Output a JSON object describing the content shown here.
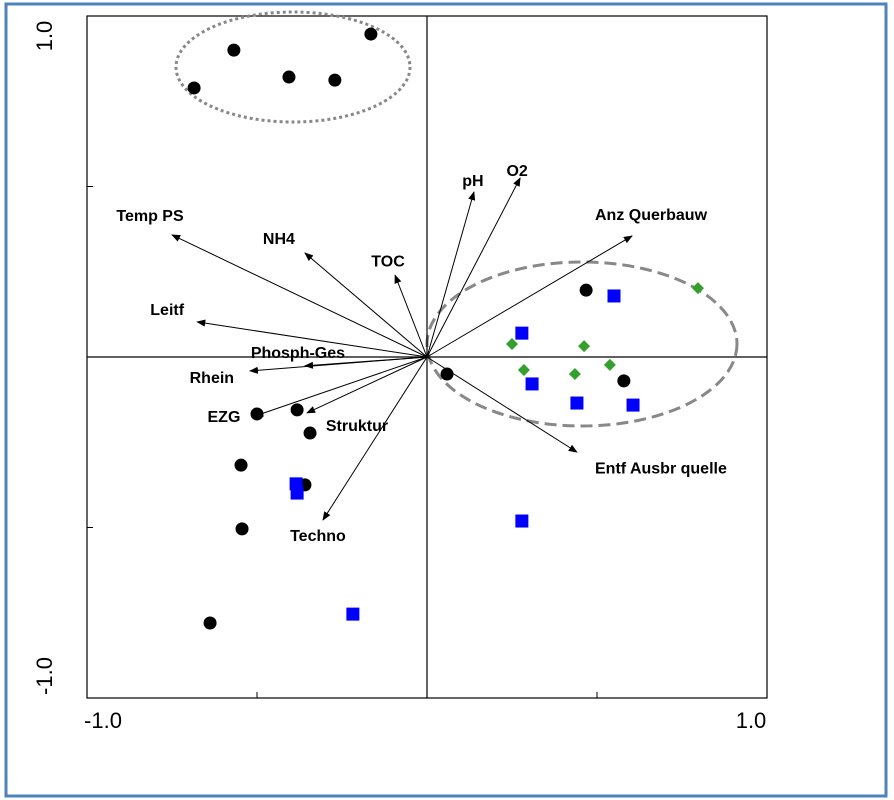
{
  "chart_data": {
    "type": "biplot",
    "xlim": [
      -1,
      1
    ],
    "ylim": [
      -1,
      1
    ],
    "xticks": [
      {
        "value": -1,
        "label": "-1.0"
      },
      {
        "value": 1,
        "label": "1.0"
      }
    ],
    "yticks": [
      {
        "value": -1,
        "label": "-1.0"
      },
      {
        "value": 1,
        "label": "1.0"
      }
    ],
    "xminor_ticks": [
      -0.5,
      0,
      0.5
    ],
    "yminor_ticks": [
      -0.5,
      0,
      0.5
    ],
    "series": [
      {
        "marker": "circle",
        "color": "#000000",
        "x": [
          -0.568,
          -0.685,
          -0.406,
          -0.271,
          -0.165,
          0.468,
          0.579,
          0.059,
          -0.5,
          -0.382,
          -0.344,
          -0.547,
          -0.359,
          -0.544,
          -0.638
        ],
        "y": [
          0.9,
          0.789,
          0.821,
          0.812,
          0.947,
          0.196,
          -0.07,
          -0.05,
          -0.167,
          -0.155,
          -0.223,
          -0.317,
          -0.375,
          -0.504,
          -0.78
        ]
      },
      {
        "marker": "square",
        "color": "#0000ff",
        "x": [
          0.55,
          0.279,
          0.309,
          0.441,
          0.606,
          -0.385,
          -0.382,
          0.279,
          -0.218
        ],
        "y": [
          0.179,
          0.07,
          -0.079,
          -0.135,
          -0.141,
          -0.372,
          -0.399,
          -0.481,
          -0.754
        ]
      },
      {
        "marker": "diamond",
        "color": "#33a02c",
        "x": [
          0.797,
          0.25,
          0.462,
          0.285,
          0.435,
          0.538
        ],
        "y": [
          0.202,
          0.038,
          0.032,
          -0.038,
          -0.05,
          -0.023
        ]
      }
    ],
    "vectors": [
      {
        "label": "Temp PS",
        "x": -0.75,
        "y": 0.358
      },
      {
        "label": "NH4",
        "x": -0.359,
        "y": 0.305
      },
      {
        "label": "TOC",
        "x": -0.094,
        "y": 0.24
      },
      {
        "label": "pH",
        "x": 0.138,
        "y": 0.484
      },
      {
        "label": "O2",
        "x": 0.274,
        "y": 0.525
      },
      {
        "label": "Anz Querbauw",
        "x": 0.603,
        "y": 0.355
      },
      {
        "label": "Leitf",
        "x": -0.676,
        "y": 0.103
      },
      {
        "label": "Phosph-Ges",
        "x": -0.359,
        "y": -0.026
      },
      {
        "label": "Rhein",
        "x": -0.521,
        "y": -0.041
      },
      {
        "label": "EZG",
        "x": -0.506,
        "y": -0.173
      },
      {
        "label": "Struktur",
        "x": -0.353,
        "y": -0.164
      },
      {
        "label": "Techno",
        "x": -0.306,
        "y": -0.478
      },
      {
        "label": "Entf Ausbr quelle",
        "x": 0.441,
        "y": -0.279
      }
    ]
  }
}
